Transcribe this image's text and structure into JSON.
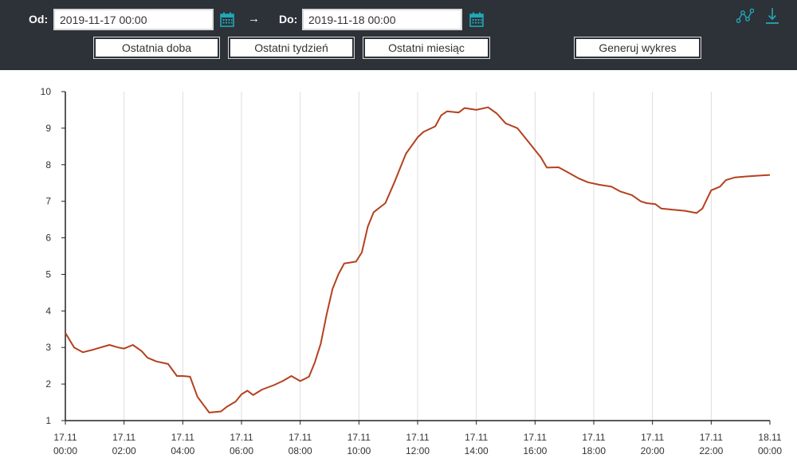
{
  "toolbar": {
    "from_label": "Od:",
    "from_value": "2019-11-17 00:00",
    "arrow": "→",
    "to_label": "Do:",
    "to_value": "2019-11-18 00:00",
    "buttons": {
      "last_day": "Ostatnia doba",
      "last_week": "Ostatni tydzień",
      "last_month": "Ostatni miesiąc",
      "generate": "Generuj wykres"
    },
    "icons": {
      "calendar": "calendar-icon",
      "chart_type": "line-chart-icon",
      "download": "download-icon"
    },
    "accent_color": "#1fa8b8",
    "background_color": "#2d3138"
  },
  "chart_data": {
    "type": "line",
    "line_color": "#b5401f",
    "xlim_hours": [
      0,
      24
    ],
    "ylim": [
      1,
      10
    ],
    "y_ticks": [
      1,
      2,
      3,
      4,
      5,
      6,
      7,
      8,
      9,
      10
    ],
    "x_ticks": [
      {
        "hour": 0,
        "date": "17.11",
        "time": "00:00"
      },
      {
        "hour": 2,
        "date": "17.11",
        "time": "02:00"
      },
      {
        "hour": 4,
        "date": "17.11",
        "time": "04:00"
      },
      {
        "hour": 6,
        "date": "17.11",
        "time": "06:00"
      },
      {
        "hour": 8,
        "date": "17.11",
        "time": "08:00"
      },
      {
        "hour": 10,
        "date": "17.11",
        "time": "10:00"
      },
      {
        "hour": 12,
        "date": "17.11",
        "time": "12:00"
      },
      {
        "hour": 14,
        "date": "17.11",
        "time": "14:00"
      },
      {
        "hour": 16,
        "date": "17.11",
        "time": "16:00"
      },
      {
        "hour": 18,
        "date": "17.11",
        "time": "18:00"
      },
      {
        "hour": 20,
        "date": "17.11",
        "time": "20:00"
      },
      {
        "hour": 22,
        "date": "17.11",
        "time": "22:00"
      },
      {
        "hour": 24,
        "date": "18.11",
        "time": "00:00"
      }
    ],
    "grid": "vertical",
    "points": [
      [
        0.0,
        3.4
      ],
      [
        0.3,
        3.0
      ],
      [
        0.6,
        2.87
      ],
      [
        0.9,
        2.93
      ],
      [
        1.2,
        3.0
      ],
      [
        1.5,
        3.07
      ],
      [
        1.8,
        3.0
      ],
      [
        2.0,
        2.97
      ],
      [
        2.3,
        3.07
      ],
      [
        2.6,
        2.9
      ],
      [
        2.8,
        2.72
      ],
      [
        3.1,
        2.62
      ],
      [
        3.5,
        2.55
      ],
      [
        3.8,
        2.22
      ],
      [
        4.0,
        2.22
      ],
      [
        4.25,
        2.2
      ],
      [
        4.5,
        1.65
      ],
      [
        4.9,
        1.22
      ],
      [
        5.3,
        1.25
      ],
      [
        5.5,
        1.38
      ],
      [
        5.8,
        1.52
      ],
      [
        6.0,
        1.72
      ],
      [
        6.2,
        1.82
      ],
      [
        6.4,
        1.7
      ],
      [
        6.7,
        1.85
      ],
      [
        7.1,
        1.97
      ],
      [
        7.4,
        2.08
      ],
      [
        7.7,
        2.22
      ],
      [
        8.0,
        2.08
      ],
      [
        8.3,
        2.2
      ],
      [
        8.5,
        2.6
      ],
      [
        8.7,
        3.1
      ],
      [
        8.9,
        3.9
      ],
      [
        9.1,
        4.6
      ],
      [
        9.3,
        5.0
      ],
      [
        9.5,
        5.3
      ],
      [
        9.9,
        5.35
      ],
      [
        10.1,
        5.6
      ],
      [
        10.3,
        6.3
      ],
      [
        10.5,
        6.7
      ],
      [
        10.9,
        6.95
      ],
      [
        11.2,
        7.5
      ],
      [
        11.6,
        8.3
      ],
      [
        12.0,
        8.75
      ],
      [
        12.2,
        8.9
      ],
      [
        12.6,
        9.05
      ],
      [
        12.8,
        9.35
      ],
      [
        13.0,
        9.46
      ],
      [
        13.4,
        9.43
      ],
      [
        13.6,
        9.55
      ],
      [
        14.0,
        9.5
      ],
      [
        14.4,
        9.57
      ],
      [
        14.7,
        9.4
      ],
      [
        15.0,
        9.13
      ],
      [
        15.4,
        9.0
      ],
      [
        15.8,
        8.6
      ],
      [
        16.2,
        8.2
      ],
      [
        16.4,
        7.92
      ],
      [
        16.8,
        7.93
      ],
      [
        17.1,
        7.8
      ],
      [
        17.5,
        7.62
      ],
      [
        17.8,
        7.52
      ],
      [
        18.2,
        7.45
      ],
      [
        18.6,
        7.4
      ],
      [
        18.9,
        7.27
      ],
      [
        19.3,
        7.17
      ],
      [
        19.6,
        7.0
      ],
      [
        19.8,
        6.95
      ],
      [
        20.1,
        6.92
      ],
      [
        20.3,
        6.8
      ],
      [
        20.7,
        6.77
      ],
      [
        21.1,
        6.74
      ],
      [
        21.5,
        6.68
      ],
      [
        21.7,
        6.8
      ],
      [
        22.0,
        7.3
      ],
      [
        22.3,
        7.4
      ],
      [
        22.5,
        7.58
      ],
      [
        22.8,
        7.65
      ],
      [
        23.2,
        7.68
      ],
      [
        23.6,
        7.7
      ],
      [
        24.0,
        7.72
      ]
    ]
  }
}
